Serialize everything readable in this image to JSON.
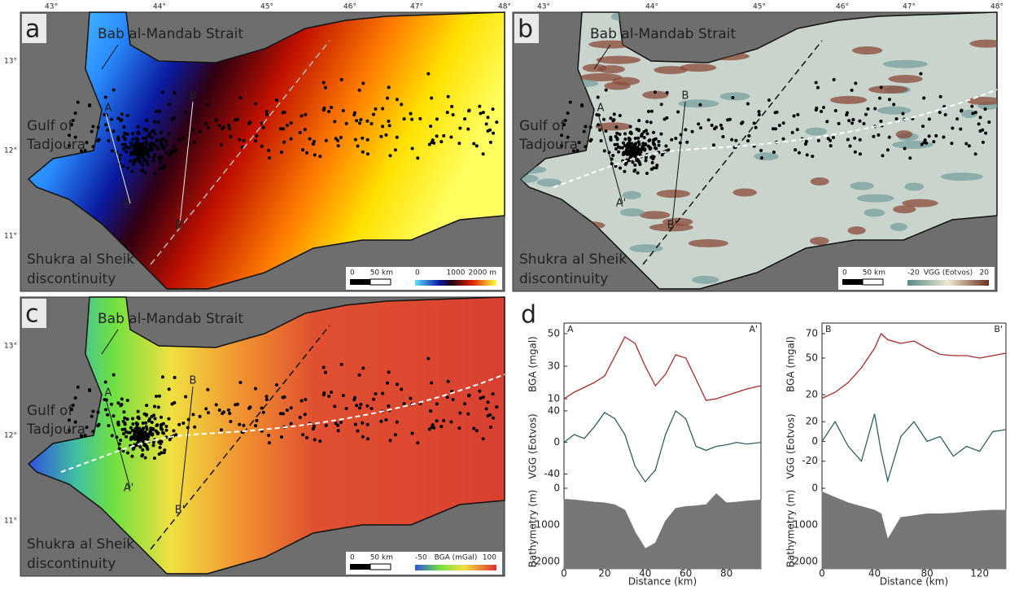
{
  "map_axes": {
    "lon": [
      "43°",
      "44°",
      "45°",
      "46°",
      "47°",
      "48°"
    ],
    "lat": [
      "13°",
      "12°",
      "11°"
    ]
  },
  "panels": [
    {
      "label": "a",
      "places": [
        "Bab al-Mandab Strait",
        "Gulf of",
        "Tadjoura",
        "Shukra al Sheik",
        "discontinuity"
      ],
      "profiles": [
        "A",
        "A'",
        "B",
        "B'"
      ],
      "scale": [
        "0",
        "50 km"
      ],
      "colorbar": [
        "0",
        "1000",
        "2000 m"
      ]
    },
    {
      "label": "b",
      "places": [
        "Bab al-Mandab Strait",
        "Gulf of",
        "Tadjoura",
        "Shukra al Sheik",
        "discontinuity"
      ],
      "profiles": [
        "A",
        "A'",
        "B",
        "B'"
      ],
      "scale": [
        "0",
        "50 km"
      ],
      "colorbar": [
        "-20",
        "VGG (Eotvos)",
        "20"
      ]
    },
    {
      "label": "c",
      "places": [
        "Bab al-Mandab Strait",
        "Gulf of",
        "Tadjoura",
        "Shukra al Sheik",
        "discontinuity"
      ],
      "profiles": [
        "A",
        "A'",
        "B",
        "B'"
      ],
      "scale": [
        "0",
        "50 km"
      ],
      "colorbar": [
        "-50",
        "BGA (mGal)",
        "100"
      ]
    }
  ],
  "profile_label": "d",
  "chart_data": [
    {
      "type": "line",
      "start": "A",
      "end": "A'",
      "xlabel": "Distance (km)",
      "x": [
        0,
        5,
        10,
        15,
        20,
        25,
        30,
        35,
        40,
        45,
        50,
        55,
        60,
        65,
        70,
        75,
        80,
        85,
        90,
        97
      ],
      "xlim": [
        0,
        97
      ],
      "xticks": [
        0,
        20,
        40,
        60,
        80
      ],
      "panels": [
        {
          "ylabel": "BGA (mgal)",
          "ylim": [
            5,
            57.5
          ],
          "yticks": [
            10,
            30,
            50
          ],
          "series": [
            {
              "color": "#a52a2a",
              "values": [
                10,
                14,
                17,
                20,
                24,
                36,
                48,
                44,
                30,
                18,
                25,
                37,
                35,
                22,
                9,
                10,
                12,
                14,
                16,
                18
              ]
            }
          ]
        },
        {
          "ylabel": "VGG (Eotvos)",
          "ylim": [
            -55,
            45
          ],
          "yticks": [
            -40,
            0,
            40
          ],
          "series": [
            {
              "color": "#2f5f5f",
              "values": [
                0,
                10,
                5,
                20,
                38,
                30,
                10,
                -30,
                -50,
                -35,
                10,
                40,
                30,
                -5,
                -10,
                -5,
                -3,
                0,
                -2,
                0
              ]
            }
          ]
        },
        {
          "ylabel": "Bathymetry (m)",
          "ylim": [
            -2200,
            0
          ],
          "yticks": [
            -2000,
            -1000,
            0
          ],
          "series": [
            {
              "color": "#777777",
              "fill": "#777777",
              "values": [
                -300,
                -320,
                -350,
                -380,
                -400,
                -450,
                -600,
                -1200,
                -1650,
                -1500,
                -900,
                -550,
                -500,
                -480,
                -450,
                -150,
                -400,
                -380,
                -350,
                -320
              ]
            }
          ]
        }
      ]
    },
    {
      "type": "line",
      "start": "B",
      "end": "B'",
      "xlabel": "Distance (km)",
      "x": [
        0,
        10,
        20,
        30,
        40,
        45,
        50,
        60,
        70,
        80,
        90,
        100,
        110,
        120,
        130,
        140
      ],
      "xlim": [
        0,
        140
      ],
      "xticks": [
        0,
        40,
        80,
        120
      ],
      "panels": [
        {
          "ylabel": "BGA (mgal)",
          "ylim": [
            10,
            80
          ],
          "yticks": [
            20,
            50,
            70
          ],
          "series": [
            {
              "color": "#a52a2a",
              "values": [
                17,
                22,
                30,
                42,
                58,
                70,
                65,
                62,
                64,
                58,
                53,
                52,
                52,
                50,
                52,
                54
              ]
            }
          ]
        },
        {
          "ylabel": "VGG (Eotvos)",
          "ylim": [
            -45,
            35
          ],
          "yticks": [
            -20,
            0,
            20
          ],
          "series": [
            {
              "color": "#2f5f5f",
              "values": [
                0,
                20,
                -5,
                -20,
                28,
                -10,
                -40,
                5,
                20,
                0,
                5,
                -15,
                -5,
                -10,
                10,
                12
              ]
            }
          ]
        },
        {
          "ylabel": "Bathymetry (m)",
          "ylim": [
            -2200,
            0
          ],
          "yticks": [
            -2000,
            -1000,
            0
          ],
          "series": [
            {
              "color": "#777777",
              "fill": "#777777",
              "values": [
                -100,
                -250,
                -400,
                -500,
                -600,
                -700,
                -1400,
                -800,
                -750,
                -700,
                -700,
                -680,
                -650,
                -620,
                -600,
                -600
              ]
            }
          ]
        }
      ]
    }
  ]
}
